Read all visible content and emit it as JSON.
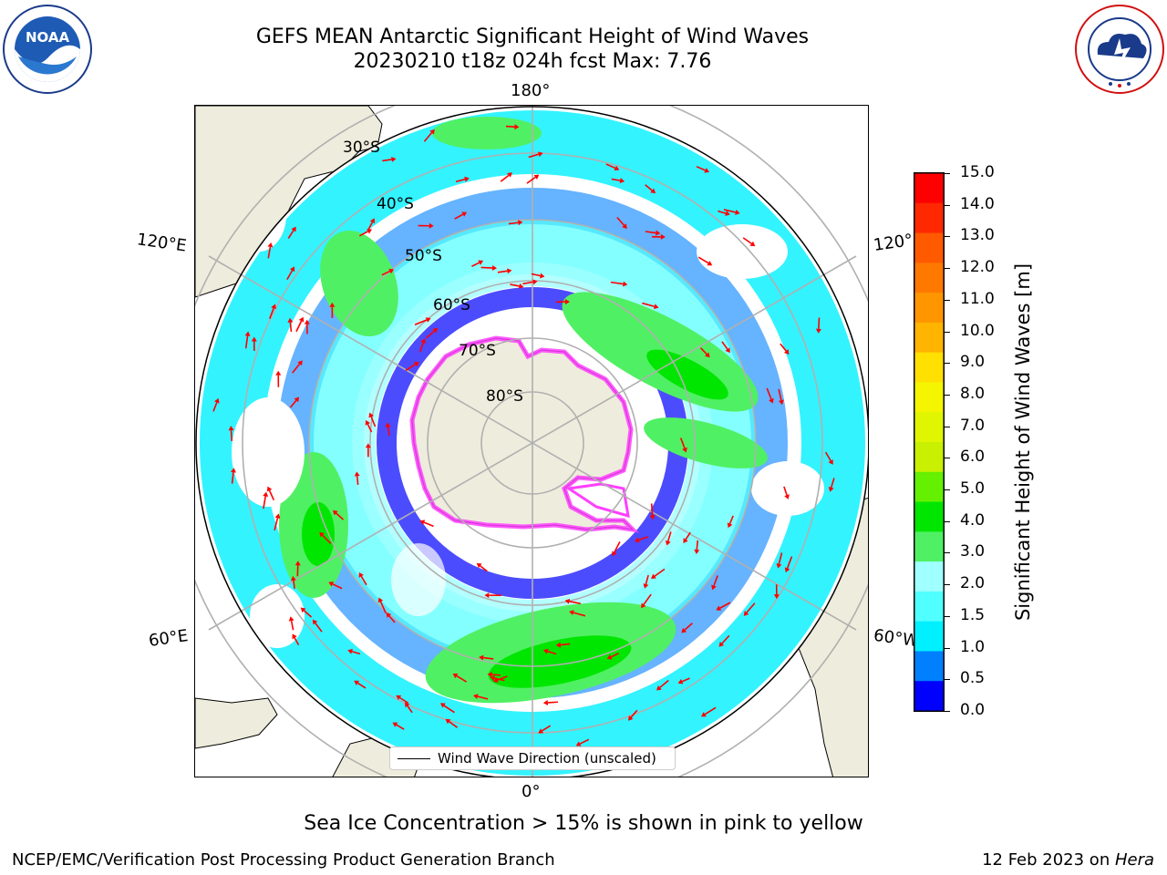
{
  "title": {
    "line1": "GEFS MEAN Antarctic Significant Height of Wind Waves",
    "line2": "20230210 t18z 024h fcst   Max: 7.76"
  },
  "logos": {
    "left": "noaa-logo",
    "left_text": "NOAA",
    "right": "national-weather-service-logo"
  },
  "map": {
    "projection": "south-polar-stereographic",
    "longitude_labels": {
      "top": "180°",
      "bottom": "0°",
      "left_upper": "120°E",
      "left_lower": "60°E",
      "right_upper": "120°",
      "right_lower": "60°W"
    },
    "latitude_labels": [
      "30°S",
      "40°S",
      "50°S",
      "60°S",
      "70°S",
      "80°S"
    ],
    "legend_label": "Wind Wave Direction (unscaled)",
    "colors": {
      "land": "#eeecdc",
      "ocean_calm": "#ffffff",
      "grid": "#b0b0b0",
      "arrow": "#ff0000",
      "sea_ice": "#ff40ff"
    }
  },
  "colorbar": {
    "label": "Significant Height of Wind Waves [m]",
    "ticks": [
      "15.0",
      "14.0",
      "13.0",
      "12.0",
      "11.0",
      "10.0",
      "9.0",
      "8.0",
      "7.0",
      "6.0",
      "5.0",
      "4.0",
      "3.0",
      "2.0",
      "1.5",
      "1.0",
      "0.5",
      "0.0"
    ],
    "colors_top_to_bottom": [
      "#ff0000",
      "#ff2800",
      "#ff5a00",
      "#ff7800",
      "#ff9600",
      "#ffb400",
      "#ffe000",
      "#f5f500",
      "#e0f500",
      "#c8f000",
      "#64f000",
      "#00e600",
      "#50f064",
      "#a0ffff",
      "#50ffff",
      "#00f0ff",
      "#0080ff",
      "#0000ff"
    ]
  },
  "footer": {
    "note": "Sea Ice Concentration > 15% is shown in pink to yellow",
    "left": "NCEP/EMC/Verification Post Processing Product Generation Branch",
    "right_prefix": "12 Feb 2023 on ",
    "right_host": "Hera"
  }
}
